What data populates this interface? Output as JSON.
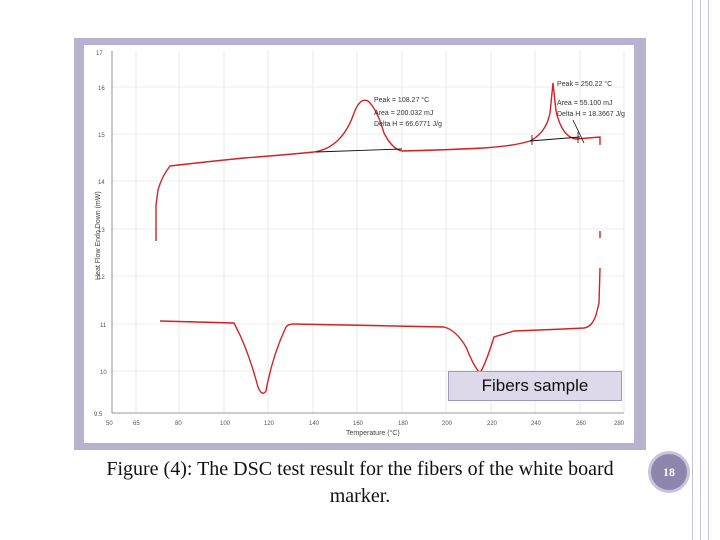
{
  "figure": {
    "badge_text": "Fibers  sample",
    "caption": "Figure (4): The DSC test result for the fibers of the white board marker.",
    "y_axis_label": "Heat Flow Endo Down (mW)",
    "x_axis_label": "Temperature (°C)",
    "peak1": {
      "line1": "Peak = 108.27 °C",
      "line2": "Area = 200.032 mJ",
      "line3": "Delta H = 66.6771 J/g"
    },
    "peak2": {
      "line1": "Peak = 250.22 °C",
      "line2": "Area = 55.100 mJ",
      "line3": "Delta H = 18.3667 J/g"
    }
  },
  "page_number": "18",
  "colors": {
    "curve": "#d42222",
    "frame": "#b9b2cf",
    "badge_bg": "#ddd8ea",
    "page_badge": "#8e86ad"
  }
}
